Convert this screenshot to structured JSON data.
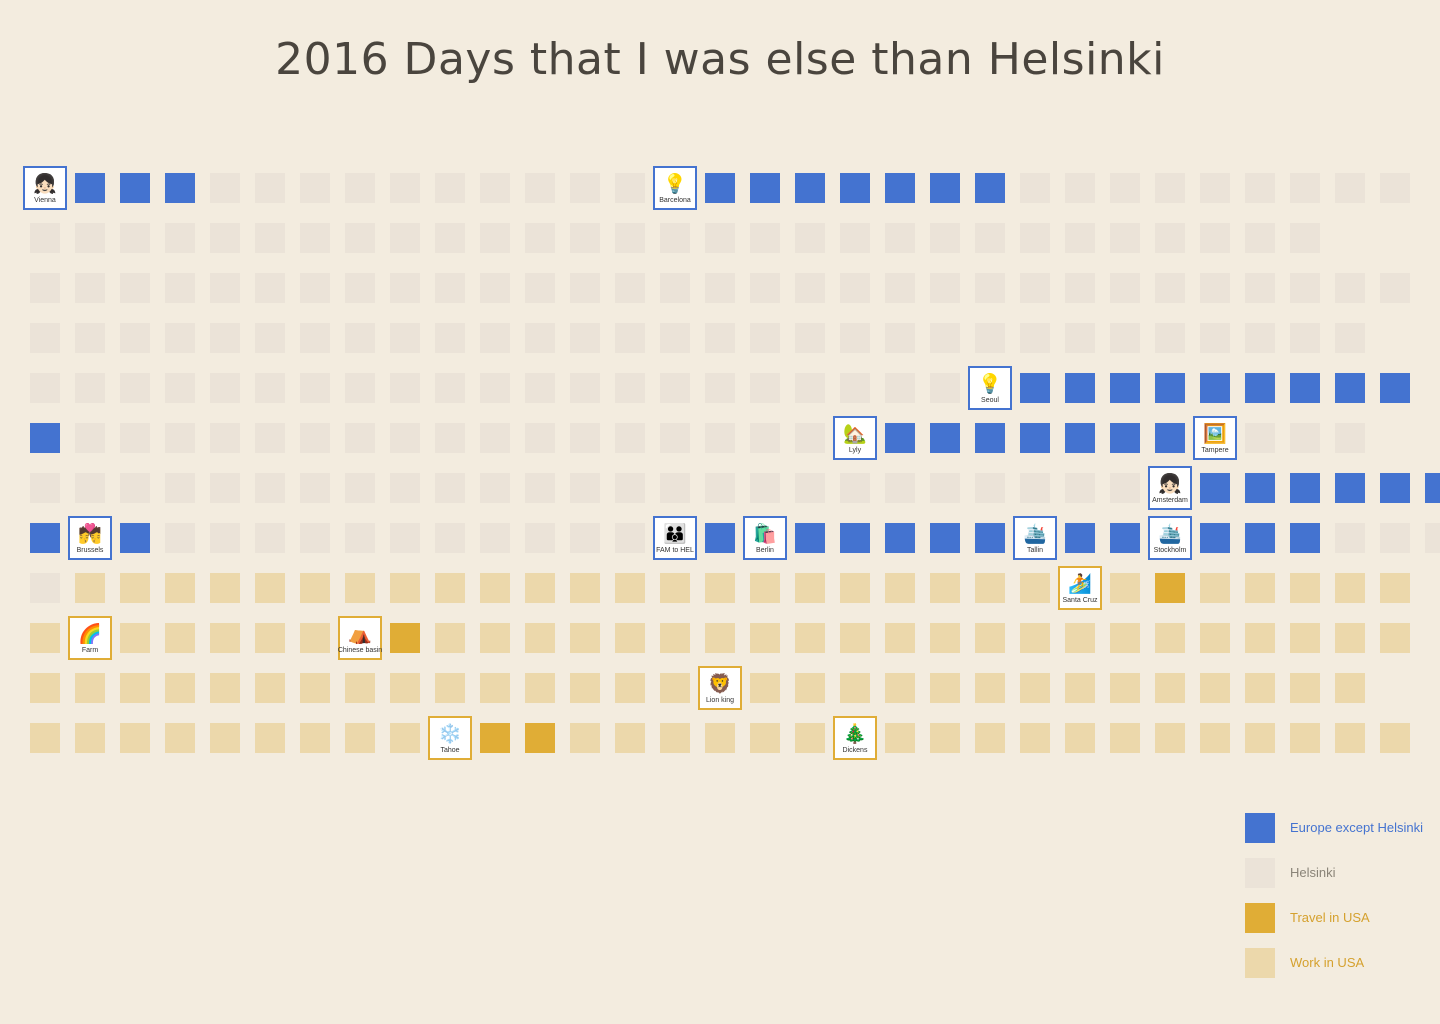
{
  "title": "2016 Days that I was else than Helsinki",
  "chart_data": {
    "type": "table",
    "title": "2016 Days that I was else than Helsinki",
    "categories": [
      {
        "code": "E",
        "label": "Europe except Helsinki",
        "color": "#4473d0",
        "text_color": "#4473d0"
      },
      {
        "code": "H",
        "label": "Helsinki",
        "color": "#ebe3d8",
        "text_color": "#8a8478"
      },
      {
        "code": "T",
        "label": "Travel in USA",
        "color": "#e0ad36",
        "text_color": "#d5a12e"
      },
      {
        "code": "W",
        "label": "Work in USA",
        "color": "#ecd8ab",
        "text_color": "#d5a12e"
      }
    ],
    "months": [
      {
        "days": "EEEEHHHHHHHHHHEEEEEEEEHHHHHHHHH"
      },
      {
        "days": "HHHHHHHHHHHHHHHHHHHHHHHHHHHHH"
      },
      {
        "days": "HHHHHHHHHHHHHHHHHHHHHHHHHHHHHHH"
      },
      {
        "days": "HHHHHHHHHHHHHHHHHHHHHHHHHHHHHH"
      },
      {
        "days": "HHHHHHHHHHHHHHHHHHHHHHEEEEEEEEE"
      },
      {
        "days": "EHHHHHHHHHHHHHHHHHHEEEEEEEEHHH"
      },
      {
        "days": "HHHHHHHHHHHHHHHHHHHHHHHHHHEEEEEE"
      },
      {
        "days": "EEEHHHHHHHHHHHEEEEEEEEEEEEEEEHHHH"
      },
      {
        "days": "HWWWWWWWWWWWWWWWWWWWWWWWWTWWWWW"
      },
      {
        "days": "WWWWWWWWTWWWWWWWWWWWWWWWWWWWWWW"
      },
      {
        "days": "WWWWWWWWWWWWWWWWWWWWWWWWWWWWWW"
      },
      {
        "days": "WWWWWWWWWWTTWWWWWWWWWWWWWWWWWWW"
      }
    ],
    "events": [
      {
        "month": 1,
        "day": 1,
        "icon": "👧🏻",
        "icon_name": "girl-icon",
        "label": "Vienna",
        "category": "E"
      },
      {
        "month": 1,
        "day": 15,
        "icon": "💡",
        "icon_name": "lightbulb-icon",
        "label": "Barcelona",
        "category": "E"
      },
      {
        "month": 5,
        "day": 22,
        "icon": "💡",
        "icon_name": "lightbulb-icon",
        "label": "Seoul",
        "category": "E"
      },
      {
        "month": 6,
        "day": 19,
        "icon": "🏡",
        "icon_name": "house-icon",
        "label": "Lyly",
        "category": "E"
      },
      {
        "month": 6,
        "day": 27,
        "icon": "🖼️",
        "icon_name": "framed-picture-icon",
        "label": "Tampere",
        "category": "E"
      },
      {
        "month": 7,
        "day": 26,
        "icon": "👧🏻",
        "icon_name": "girl-icon",
        "label": "Amsterdam",
        "category": "E"
      },
      {
        "month": 8,
        "day": 2,
        "icon": "💏",
        "icon_name": "couple-kiss-icon",
        "label": "Brussels",
        "category": "E"
      },
      {
        "month": 8,
        "day": 15,
        "icon": "👪",
        "icon_name": "family-icon",
        "label": "FAM to HEL",
        "category": "E"
      },
      {
        "month": 8,
        "day": 17,
        "icon": "🛍️",
        "icon_name": "shopping-bags-icon",
        "label": "Berlin",
        "category": "E"
      },
      {
        "month": 8,
        "day": 23,
        "icon": "🛳️",
        "icon_name": "ship-icon",
        "label": "Tallin",
        "category": "E"
      },
      {
        "month": 8,
        "day": 26,
        "icon": "🛳️",
        "icon_name": "ship-icon",
        "label": "Stockholm",
        "category": "E"
      },
      {
        "month": 9,
        "day": 24,
        "icon": "🏄",
        "icon_name": "surfer-icon",
        "label": "Santa Cruz",
        "category": "T"
      },
      {
        "month": 10,
        "day": 2,
        "icon": "🌈",
        "icon_name": "rainbow-icon",
        "label": "Farm",
        "category": "T"
      },
      {
        "month": 10,
        "day": 8,
        "icon": "⛺",
        "icon_name": "tent-icon",
        "label": "Chinese basin",
        "category": "T"
      },
      {
        "month": 11,
        "day": 16,
        "icon": "🦁",
        "icon_name": "lion-icon",
        "label": "Lion king",
        "category": "T"
      },
      {
        "month": 12,
        "day": 10,
        "icon": "❄️",
        "icon_name": "snowflake-icon",
        "label": "Tahoe",
        "category": "T"
      },
      {
        "month": 12,
        "day": 19,
        "icon": "🎄",
        "icon_name": "christmas-tree-icon",
        "label": "Dickens",
        "category": "T"
      }
    ],
    "legend_position": "bottom-right"
  }
}
